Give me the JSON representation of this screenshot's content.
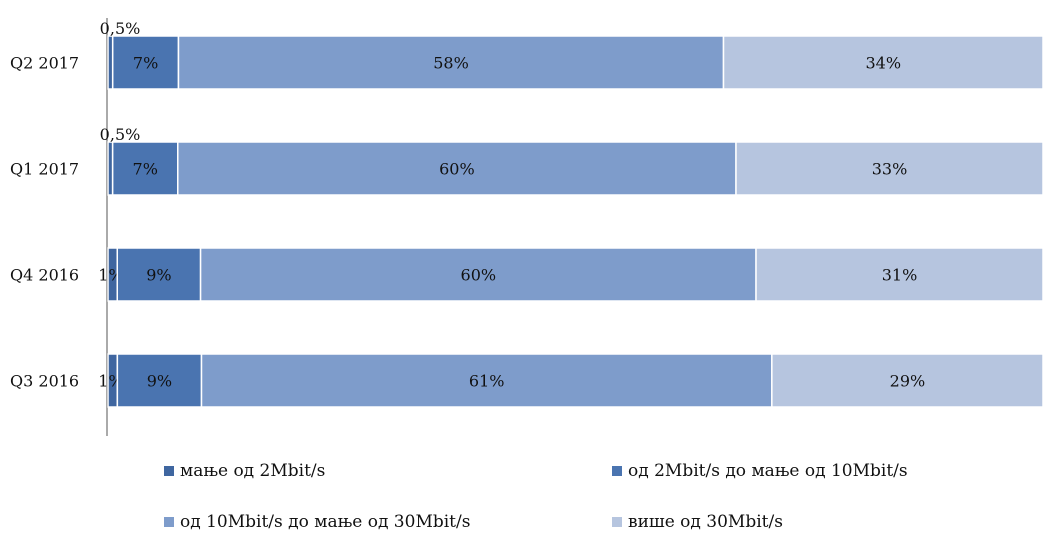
{
  "chart_data": {
    "type": "bar",
    "orientation": "horizontal",
    "stacked": true,
    "percent_stacked": true,
    "categories": [
      "Q2 2017",
      "Q1 2017",
      "Q4 2016",
      "Q3 2016"
    ],
    "series": [
      {
        "name": "мање од 2Mbit/s",
        "values": [
          0.5,
          0.5,
          1,
          1
        ],
        "labels": [
          "0,5%",
          "0,5%",
          "1%",
          "1%"
        ],
        "color": "#3f66a0"
      },
      {
        "name": "од 2Mbit/s до мање од 10Mbit/s",
        "values": [
          7,
          7,
          9,
          9
        ],
        "labels": [
          "7%",
          "7%",
          "9%",
          "9%"
        ],
        "color": "#4a74b0"
      },
      {
        "name": "од 10Mbit/s до мање од 30Mbit/s",
        "values": [
          58,
          60,
          60,
          61
        ],
        "labels": [
          "58%",
          "60%",
          "60%",
          "61%"
        ],
        "color": "#7e9ccb"
      },
      {
        "name": "више од 30Mbit/s",
        "values": [
          34,
          33,
          31,
          29
        ],
        "labels": [
          "34%",
          "33%",
          "31%",
          "29%"
        ],
        "color": "#b6c5df"
      }
    ],
    "xlim": [
      0,
      100
    ],
    "grid": false,
    "legend_position": "bottom"
  }
}
